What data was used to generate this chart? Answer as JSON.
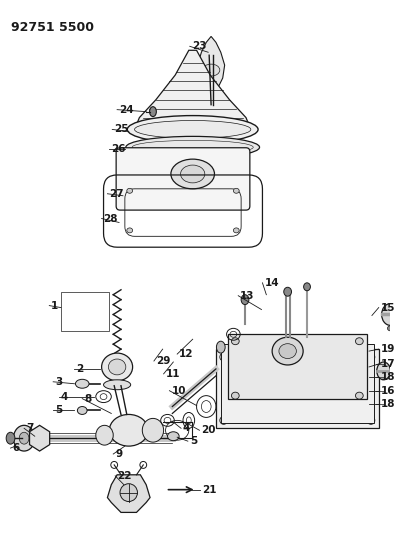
{
  "title": "92751 5500",
  "bg_color": "#ffffff",
  "line_color": "#1a1a1a",
  "title_fontsize": 9,
  "label_fontsize": 7,
  "fig_w": 4.0,
  "fig_h": 5.33,
  "dpi": 100
}
